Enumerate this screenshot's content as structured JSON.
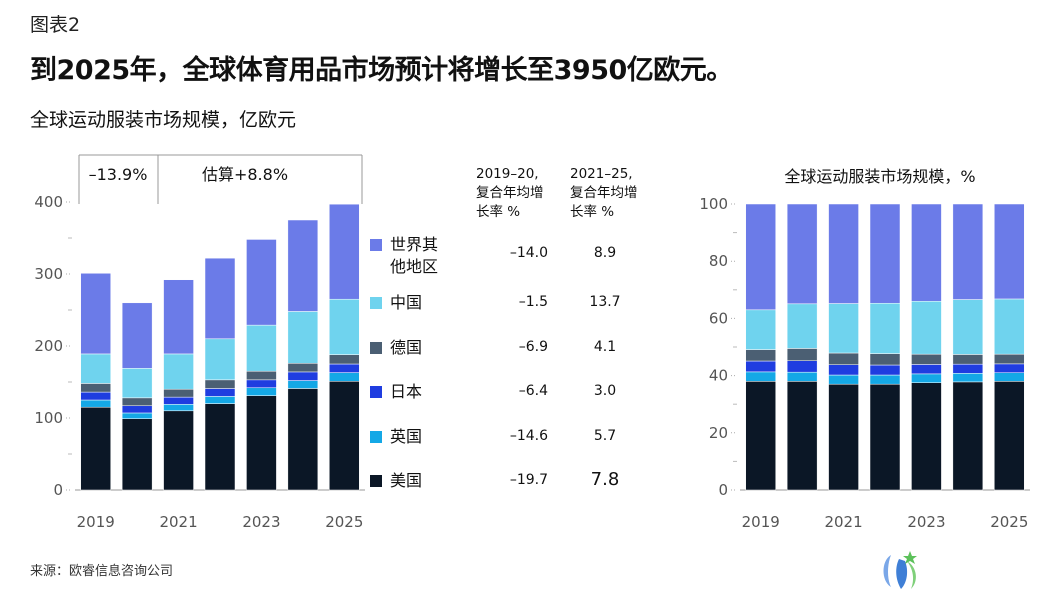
{
  "figure_label": "图表2",
  "headline": "到2025年，全球体育用品市场预计将增长至3950亿欧元。",
  "source": "来源：欧睿信息咨询公司",
  "left_chart_title": "全球运动服装市场规模，亿欧元",
  "right_chart_title": "全球运动服装市场规模，%",
  "annotations": {
    "left_period": "–13.9%",
    "right_period": "估算+8.8%"
  },
  "table_headers": {
    "col1": "2019–20,\n复合年均增\n长率 %",
    "col2": "2021–25,\n复合年均增\n长率 %"
  },
  "legend": [
    {
      "label": "世界其\n他地区",
      "color": "#6b7be8",
      "cagr_2019_20": "–14.0",
      "cagr_2021_25": "8.9"
    },
    {
      "label": "中国",
      "color": "#6fd3ee",
      "cagr_2019_20": "–1.5",
      "cagr_2021_25": "13.7"
    },
    {
      "label": "德国",
      "color": "#4b5f73",
      "cagr_2019_20": "–6.9",
      "cagr_2021_25": "4.1"
    },
    {
      "label": "日本",
      "color": "#1f3de0",
      "cagr_2019_20": "–6.4",
      "cagr_2021_25": "3.0"
    },
    {
      "label": "英国",
      "color": "#14a8e6",
      "cagr_2019_20": "–14.6",
      "cagr_2021_25": "5.7"
    },
    {
      "label": "美国",
      "color": "#0b1726",
      "cagr_2019_20": "–19.7",
      "cagr_2021_25": "7.8"
    }
  ],
  "chart_data": [
    {
      "type": "bar",
      "stacked": true,
      "categories": [
        "2019",
        "2020",
        "2021",
        "2022",
        "2023",
        "2024",
        "2025"
      ],
      "x_tick_labels": [
        "2019",
        "2021",
        "2023",
        "2025"
      ],
      "ylim": [
        0,
        400
      ],
      "yticks": [
        0,
        100,
        200,
        300,
        400
      ],
      "series": [
        {
          "name": "美国",
          "values": [
            115,
            99,
            110,
            120,
            131,
            141,
            151
          ]
        },
        {
          "name": "英国",
          "values": [
            10,
            8,
            9,
            10,
            11,
            11,
            12
          ]
        },
        {
          "name": "日本",
          "values": [
            11,
            10,
            10,
            11,
            11,
            12,
            12
          ]
        },
        {
          "name": "德国",
          "values": [
            12,
            11,
            11,
            12,
            12,
            12,
            13
          ]
        },
        {
          "name": "中国",
          "values": [
            41,
            41,
            49,
            57,
            64,
            72,
            77
          ]
        },
        {
          "name": "世界其他地区",
          "values": [
            112,
            91,
            103,
            112,
            119,
            127,
            132
          ]
        }
      ]
    },
    {
      "type": "bar",
      "stacked": true,
      "percent": true,
      "categories": [
        "2019",
        "2020",
        "2021",
        "2022",
        "2023",
        "2024",
        "2025"
      ],
      "x_tick_labels": [
        "2019",
        "2021",
        "2023",
        "2025"
      ],
      "ylim": [
        0,
        100
      ],
      "yticks": [
        0,
        20,
        40,
        60,
        80,
        100
      ],
      "series": [
        {
          "name": "美国",
          "values": [
            38,
            38,
            37,
            37,
            37.5,
            37.8,
            38
          ]
        },
        {
          "name": "英国",
          "values": [
            3.3,
            3.2,
            3.2,
            3.2,
            3.1,
            3.0,
            3.0
          ]
        },
        {
          "name": "日本",
          "values": [
            3.8,
            4.0,
            3.6,
            3.5,
            3.3,
            3.2,
            3.1
          ]
        },
        {
          "name": "德国",
          "values": [
            4.0,
            4.3,
            4.1,
            4.0,
            3.6,
            3.4,
            3.4
          ]
        },
        {
          "name": "中国",
          "values": [
            13.9,
            15.6,
            17.3,
            17.6,
            18.5,
            19.2,
            19.3
          ]
        },
        {
          "name": "世界其他地区",
          "values": [
            37,
            34.9,
            34.8,
            34.7,
            34,
            33.4,
            33.2
          ]
        }
      ]
    }
  ]
}
